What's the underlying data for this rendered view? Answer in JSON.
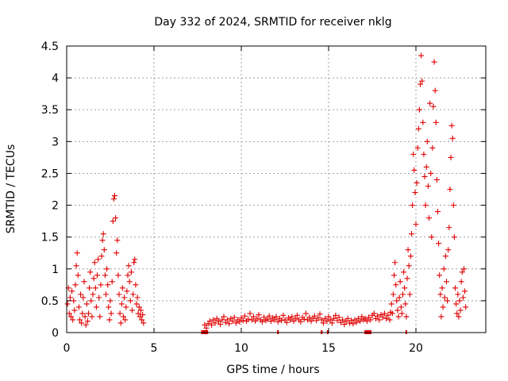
{
  "chart_data": {
    "type": "scatter",
    "title": "Day 332 of 2024, SRMTID for receiver nklg",
    "xlabel": "GPS time / hours",
    "ylabel": "SRMTID / TECUs",
    "xlim": [
      0,
      24
    ],
    "ylim": [
      0,
      4.5
    ],
    "xticks": [
      "0",
      "5",
      "10",
      "15",
      "20"
    ],
    "xtick_values": [
      0,
      5,
      10,
      15,
      20
    ],
    "yticks": [
      "0",
      "0.5",
      "1",
      "1.5",
      "2",
      "2.5",
      "3",
      "3.5",
      "4",
      "4.5"
    ],
    "ytick_values": [
      0,
      0.5,
      1,
      1.5,
      2,
      2.5,
      3,
      3.5,
      4,
      4.5
    ],
    "grid": true,
    "marker": "+",
    "color": "#e00000",
    "series": [
      {
        "name": "SRMTID",
        "points": [
          [
            0.05,
            0.45
          ],
          [
            0.1,
            0.7
          ],
          [
            0.15,
            0.3
          ],
          [
            0.2,
            0.55
          ],
          [
            0.25,
            0.25
          ],
          [
            0.3,
            0.65
          ],
          [
            0.35,
            0.2
          ],
          [
            0.4,
            0.5
          ],
          [
            0.45,
            0.35
          ],
          [
            0.5,
            0.75
          ],
          [
            0.55,
            1.05
          ],
          [
            0.6,
            1.25
          ],
          [
            0.65,
            0.9
          ],
          [
            0.7,
            0.4
          ],
          [
            0.75,
            0.2
          ],
          [
            0.8,
            0.6
          ],
          [
            0.85,
            0.15
          ],
          [
            0.9,
            0.3
          ],
          [
            0.95,
            0.55
          ],
          [
            1.0,
            0.8
          ],
          [
            1.05,
            0.25
          ],
          [
            1.1,
            0.12
          ],
          [
            1.15,
            0.45
          ],
          [
            1.2,
            0.18
          ],
          [
            1.25,
            0.3
          ],
          [
            1.3,
            0.7
          ],
          [
            1.35,
            0.95
          ],
          [
            1.4,
            0.5
          ],
          [
            1.45,
            0.25
          ],
          [
            1.5,
            0.6
          ],
          [
            1.55,
            0.85
          ],
          [
            1.6,
            1.1
          ],
          [
            1.65,
            0.7
          ],
          [
            1.7,
            0.4
          ],
          [
            1.75,
            0.9
          ],
          [
            1.8,
            1.15
          ],
          [
            1.85,
            0.55
          ],
          [
            1.9,
            0.25
          ],
          [
            1.95,
            0.75
          ],
          [
            2.0,
            1.2
          ],
          [
            2.05,
            1.45
          ],
          [
            2.1,
            1.55
          ],
          [
            2.15,
            1.3
          ],
          [
            2.2,
            0.9
          ],
          [
            2.25,
            0.6
          ],
          [
            2.3,
            1.0
          ],
          [
            2.35,
            0.75
          ],
          [
            2.4,
            0.4
          ],
          [
            2.45,
            0.2
          ],
          [
            2.5,
            0.5
          ],
          [
            2.55,
            0.3
          ],
          [
            2.6,
            0.8
          ],
          [
            2.65,
            1.75
          ],
          [
            2.7,
            2.1
          ],
          [
            2.75,
            2.15
          ],
          [
            2.8,
            1.8
          ],
          [
            2.85,
            1.25
          ],
          [
            2.9,
            1.45
          ],
          [
            2.95,
            0.9
          ],
          [
            3.0,
            0.6
          ],
          [
            3.05,
            0.3
          ],
          [
            3.1,
            0.15
          ],
          [
            3.15,
            0.45
          ],
          [
            3.2,
            0.7
          ],
          [
            3.25,
            0.25
          ],
          [
            3.3,
            0.55
          ],
          [
            3.35,
            0.2
          ],
          [
            3.4,
            0.4
          ],
          [
            3.45,
            0.65
          ],
          [
            3.5,
            0.9
          ],
          [
            3.55,
            1.05
          ],
          [
            3.6,
            0.8
          ],
          [
            3.65,
            0.5
          ],
          [
            3.7,
            0.95
          ],
          [
            3.75,
            0.35
          ],
          [
            3.8,
            0.6
          ],
          [
            3.85,
            1.1
          ],
          [
            3.9,
            1.15
          ],
          [
            3.95,
            0.75
          ],
          [
            4.0,
            0.45
          ],
          [
            4.05,
            0.55
          ],
          [
            4.1,
            0.3
          ],
          [
            4.15,
            0.4
          ],
          [
            4.2,
            0.25
          ],
          [
            4.25,
            0.35
          ],
          [
            4.3,
            0.2
          ],
          [
            4.35,
            0.28
          ],
          [
            4.4,
            0.15
          ],
          [
            7.9,
            0.12
          ],
          [
            8.0,
            0.07
          ],
          [
            8.1,
            0.14
          ],
          [
            8.2,
            0.18
          ],
          [
            8.3,
            0.12
          ],
          [
            8.4,
            0.2
          ],
          [
            8.5,
            0.15
          ],
          [
            8.6,
            0.22
          ],
          [
            8.7,
            0.18
          ],
          [
            8.8,
            0.13
          ],
          [
            8.9,
            0.2
          ],
          [
            9.0,
            0.25
          ],
          [
            9.1,
            0.16
          ],
          [
            9.2,
            0.2
          ],
          [
            9.3,
            0.14
          ],
          [
            9.4,
            0.22
          ],
          [
            9.5,
            0.18
          ],
          [
            9.6,
            0.24
          ],
          [
            9.7,
            0.15
          ],
          [
            9.8,
            0.2
          ],
          [
            9.9,
            0.17
          ],
          [
            10.0,
            0.23
          ],
          [
            10.1,
            0.19
          ],
          [
            10.2,
            0.26
          ],
          [
            10.3,
            0.18
          ],
          [
            10.4,
            0.21
          ],
          [
            10.5,
            0.3
          ],
          [
            10.6,
            0.2
          ],
          [
            10.7,
            0.25
          ],
          [
            10.8,
            0.18
          ],
          [
            10.9,
            0.22
          ],
          [
            11.0,
            0.28
          ],
          [
            11.1,
            0.2
          ],
          [
            11.2,
            0.17
          ],
          [
            11.3,
            0.24
          ],
          [
            11.4,
            0.19
          ],
          [
            11.5,
            0.21
          ],
          [
            11.6,
            0.26
          ],
          [
            11.7,
            0.18
          ],
          [
            11.8,
            0.23
          ],
          [
            11.9,
            0.2
          ],
          [
            12.0,
            0.25
          ],
          [
            12.1,
            0.17
          ],
          [
            12.2,
            0.22
          ],
          [
            12.3,
            0.19
          ],
          [
            12.4,
            0.27
          ],
          [
            12.5,
            0.2
          ],
          [
            12.6,
            0.16
          ],
          [
            12.7,
            0.23
          ],
          [
            12.8,
            0.2
          ],
          [
            12.9,
            0.25
          ],
          [
            13.0,
            0.18
          ],
          [
            13.1,
            0.22
          ],
          [
            13.2,
            0.27
          ],
          [
            13.3,
            0.2
          ],
          [
            13.4,
            0.17
          ],
          [
            13.5,
            0.24
          ],
          [
            13.6,
            0.21
          ],
          [
            13.7,
            0.3
          ],
          [
            13.8,
            0.2
          ],
          [
            13.9,
            0.24
          ],
          [
            14.0,
            0.18
          ],
          [
            14.1,
            0.22
          ],
          [
            14.2,
            0.26
          ],
          [
            14.3,
            0.19
          ],
          [
            14.4,
            0.23
          ],
          [
            14.5,
            0.29
          ],
          [
            14.6,
            0.2
          ],
          [
            14.7,
            0.15
          ],
          [
            14.8,
            0.22
          ],
          [
            14.9,
            0.18
          ],
          [
            15.0,
            0.25
          ],
          [
            15.1,
            0.2
          ],
          [
            15.2,
            0.15
          ],
          [
            15.3,
            0.22
          ],
          [
            15.4,
            0.27
          ],
          [
            15.5,
            0.19
          ],
          [
            15.6,
            0.24
          ],
          [
            15.7,
            0.16
          ],
          [
            15.8,
            0.2
          ],
          [
            15.9,
            0.13
          ],
          [
            16.0,
            0.18
          ],
          [
            16.1,
            0.22
          ],
          [
            16.2,
            0.15
          ],
          [
            16.3,
            0.19
          ],
          [
            16.4,
            0.14
          ],
          [
            16.5,
            0.2
          ],
          [
            16.6,
            0.16
          ],
          [
            16.7,
            0.22
          ],
          [
            16.8,
            0.18
          ],
          [
            16.9,
            0.25
          ],
          [
            17.0,
            0.2
          ],
          [
            17.1,
            0.22
          ],
          [
            17.2,
            0.18
          ],
          [
            17.3,
            0.24
          ],
          [
            17.4,
            0.2
          ],
          [
            17.5,
            0.27
          ],
          [
            17.6,
            0.3
          ],
          [
            17.7,
            0.22
          ],
          [
            17.8,
            0.26
          ],
          [
            17.9,
            0.2
          ],
          [
            18.0,
            0.28
          ],
          [
            18.1,
            0.24
          ],
          [
            18.2,
            0.3
          ],
          [
            18.3,
            0.22
          ],
          [
            18.4,
            0.27
          ],
          [
            18.5,
            0.2
          ],
          [
            18.55,
            0.32
          ],
          [
            18.6,
            0.45
          ],
          [
            18.65,
            0.3
          ],
          [
            18.7,
            0.6
          ],
          [
            18.75,
            0.9
          ],
          [
            18.8,
            1.1
          ],
          [
            18.85,
            0.75
          ],
          [
            18.9,
            0.5
          ],
          [
            18.95,
            0.35
          ],
          [
            19.0,
            0.25
          ],
          [
            19.05,
            0.55
          ],
          [
            19.1,
            0.8
          ],
          [
            19.15,
            0.4
          ],
          [
            19.2,
            0.3
          ],
          [
            19.25,
            0.6
          ],
          [
            19.3,
            0.95
          ],
          [
            19.35,
            0.7
          ],
          [
            19.4,
            0.45
          ],
          [
            19.45,
            0.25
          ],
          [
            19.5,
            0.85
          ],
          [
            19.55,
            1.3
          ],
          [
            19.6,
            1.05
          ],
          [
            19.65,
            0.6
          ],
          [
            19.7,
            1.2
          ],
          [
            19.75,
            1.55
          ],
          [
            19.8,
            2.0
          ],
          [
            19.85,
            2.8
          ],
          [
            19.9,
            2.55
          ],
          [
            19.95,
            2.2
          ],
          [
            20.0,
            1.7
          ],
          [
            20.05,
            2.35
          ],
          [
            20.1,
            2.9
          ],
          [
            20.15,
            3.2
          ],
          [
            20.2,
            3.5
          ],
          [
            20.25,
            3.9
          ],
          [
            20.3,
            4.35
          ],
          [
            20.35,
            3.95
          ],
          [
            20.4,
            3.3
          ],
          [
            20.45,
            2.8
          ],
          [
            20.5,
            2.45
          ],
          [
            20.55,
            2.0
          ],
          [
            20.6,
            2.6
          ],
          [
            20.65,
            3.0
          ],
          [
            20.7,
            2.3
          ],
          [
            20.75,
            1.8
          ],
          [
            20.8,
            3.6
          ],
          [
            20.85,
            2.5
          ],
          [
            20.9,
            1.5
          ],
          [
            20.95,
            2.9
          ],
          [
            21.0,
            3.55
          ],
          [
            21.05,
            4.25
          ],
          [
            21.1,
            3.8
          ],
          [
            21.15,
            3.3
          ],
          [
            21.2,
            2.4
          ],
          [
            21.25,
            1.9
          ],
          [
            21.3,
            1.4
          ],
          [
            21.35,
            0.9
          ],
          [
            21.4,
            0.6
          ],
          [
            21.45,
            0.25
          ],
          [
            21.5,
            0.7
          ],
          [
            21.55,
            0.4
          ],
          [
            21.6,
            1.0
          ],
          [
            21.65,
            0.55
          ],
          [
            21.7,
            1.2
          ],
          [
            21.75,
            0.8
          ],
          [
            21.8,
            0.5
          ],
          [
            21.85,
            1.3
          ],
          [
            21.9,
            1.65
          ],
          [
            21.95,
            2.25
          ],
          [
            22.0,
            2.75
          ],
          [
            22.05,
            3.25
          ],
          [
            22.1,
            3.05
          ],
          [
            22.15,
            2.0
          ],
          [
            22.2,
            1.5
          ],
          [
            22.25,
            0.7
          ],
          [
            22.3,
            0.45
          ],
          [
            22.35,
            0.3
          ],
          [
            22.4,
            0.6
          ],
          [
            22.45,
            0.25
          ],
          [
            22.5,
            0.5
          ],
          [
            22.55,
            0.35
          ],
          [
            22.6,
            0.8
          ],
          [
            22.65,
            0.95
          ],
          [
            22.7,
            0.55
          ],
          [
            22.75,
            1.0
          ],
          [
            22.8,
            0.65
          ],
          [
            22.85,
            0.4
          ]
        ]
      }
    ],
    "baseline_marks": [
      [
        7.7,
        8.1
      ],
      [
        12.05,
        12.15
      ],
      [
        14.55,
        14.65
      ],
      [
        14.9,
        15.0
      ],
      [
        17.05,
        17.45
      ],
      [
        19.4,
        19.5
      ]
    ]
  }
}
